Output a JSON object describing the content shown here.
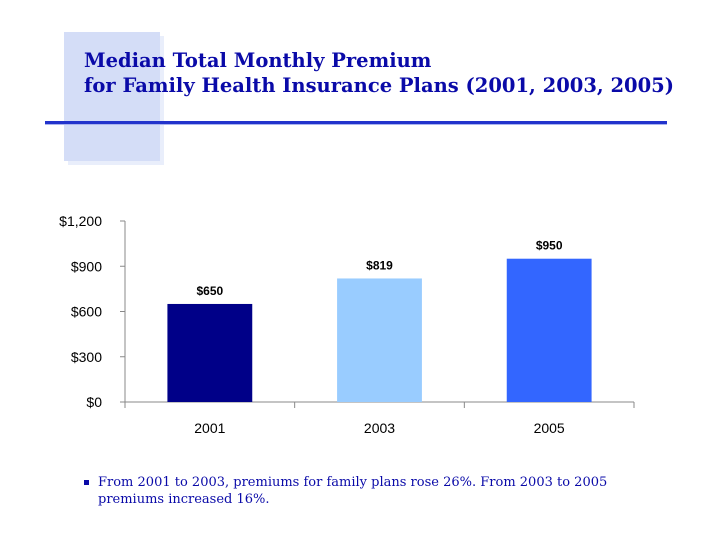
{
  "title": {
    "line1": "Median Total Monthly Premium",
    "line2": "for Family Health Insurance Plans (2001, 2003, 2005)"
  },
  "note": "From 2001 to 2003, premiums for family plans rose 26%. From 2003 to 2005 premiums increased 16%.",
  "colors": {
    "title": "#0a0aa8",
    "bars": [
      "#000088",
      "#99ccff",
      "#3366ff"
    ]
  },
  "chart_data": {
    "type": "bar",
    "categories": [
      "2001",
      "2003",
      "2005"
    ],
    "values": [
      650,
      819,
      950
    ],
    "value_labels": [
      "$650",
      "$819",
      "$950"
    ],
    "ylim": [
      0,
      1200
    ],
    "yticks": [
      0,
      300,
      600,
      900,
      1200
    ],
    "ytick_labels": [
      "$0",
      "$300",
      "$600",
      "$900",
      "$1,200"
    ],
    "grid": false,
    "title": "",
    "xlabel": "",
    "ylabel": ""
  }
}
